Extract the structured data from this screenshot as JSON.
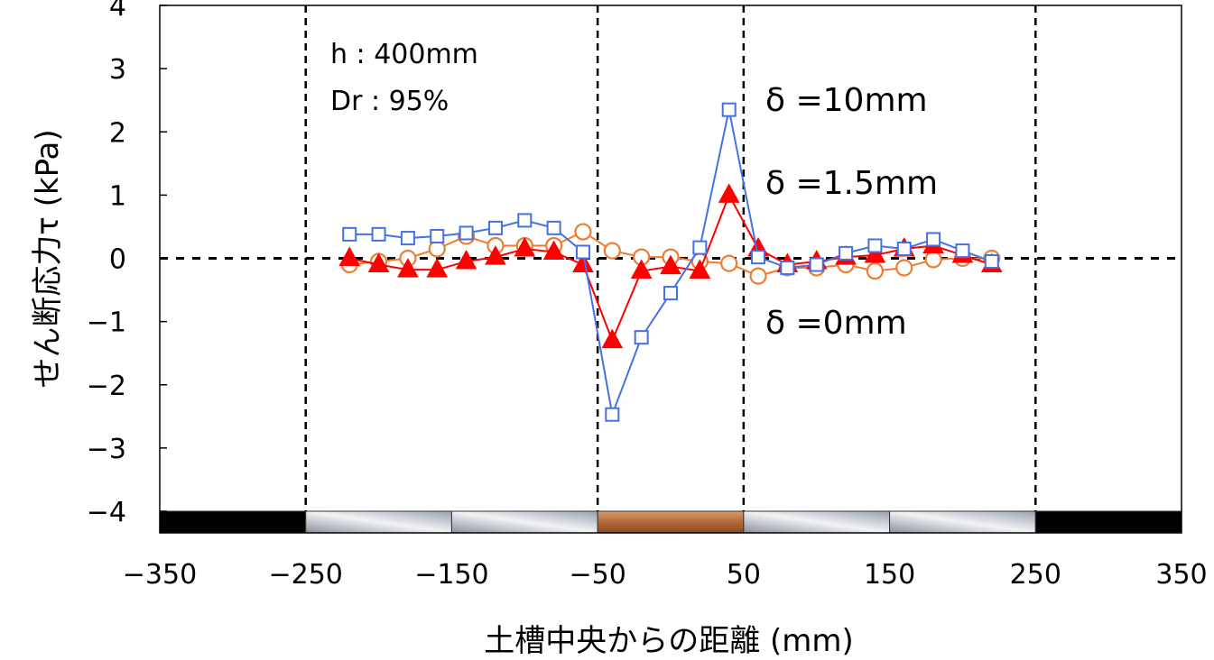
{
  "chart_data": {
    "type": "line",
    "xlabel": "土槽中央からの距離 (mm)",
    "ylabel": "せん断応力τ (kPa)",
    "xlim": [
      -350,
      350
    ],
    "ylim": [
      -4,
      4
    ],
    "x_ticks": [
      "−350",
      "−250",
      "−150",
      "−50",
      "50",
      "150",
      "250",
      "350"
    ],
    "x_tick_values": [
      -350,
      -250,
      -150,
      -50,
      50,
      150,
      250,
      350
    ],
    "y_ticks": [
      "4",
      "3",
      "2",
      "1",
      "0",
      "−1",
      "−2",
      "−3",
      "−4"
    ],
    "y_tick_values": [
      4,
      3,
      2,
      1,
      0,
      -1,
      -2,
      -3,
      -4
    ],
    "vertical_dashed_lines": [
      -250,
      -50,
      50,
      250
    ],
    "zero_line_dashed": true,
    "annotations": {
      "h": "h : 400mm",
      "dr": "Dr : 95%",
      "d10": "δ =10mm",
      "d15": "δ =1.5mm",
      "d0": "δ =0mm"
    },
    "bottom_strip": [
      {
        "from": -350,
        "to": -250,
        "color": "#000000"
      },
      {
        "from": -250,
        "to": -50,
        "color": "#9aa0ac"
      },
      {
        "from": -50,
        "to": 50,
        "color": "#b5693a"
      },
      {
        "from": 50,
        "to": 250,
        "color": "#9aa0ac"
      },
      {
        "from": 250,
        "to": 350,
        "color": "#000000"
      }
    ],
    "x": [
      -220,
      -200,
      -180,
      -160,
      -140,
      -120,
      -100,
      -80,
      -60,
      -40,
      -20,
      0,
      20,
      40,
      60,
      80,
      100,
      120,
      140,
      160,
      180,
      200,
      220
    ],
    "series": [
      {
        "label_key": "d0",
        "marker": "circle",
        "color": "#ed7d31",
        "values": [
          -0.1,
          -0.05,
          0.0,
          0.15,
          0.35,
          0.2,
          0.2,
          0.2,
          0.42,
          0.12,
          0.02,
          0.02,
          -0.05,
          -0.08,
          -0.28,
          -0.15,
          -0.15,
          -0.1,
          -0.2,
          -0.15,
          -0.02,
          0.0,
          0.0
        ]
      },
      {
        "label_key": "d15",
        "marker": "triangle",
        "color": "#ff0000",
        "values": [
          0.0,
          -0.1,
          -0.18,
          -0.18,
          -0.05,
          0.02,
          0.15,
          0.1,
          -0.1,
          -1.3,
          -0.2,
          -0.13,
          -0.2,
          1.0,
          0.15,
          -0.1,
          -0.05,
          0.02,
          0.05,
          0.15,
          0.2,
          0.05,
          -0.1
        ]
      },
      {
        "label_key": "d10",
        "marker": "square",
        "color": "#4472e4",
        "values": [
          0.38,
          0.38,
          0.32,
          0.35,
          0.4,
          0.48,
          0.6,
          0.48,
          0.1,
          -2.47,
          -1.25,
          -0.55,
          0.17,
          2.35,
          0.02,
          -0.15,
          -0.1,
          0.08,
          0.2,
          0.15,
          0.3,
          0.12,
          -0.05
        ]
      }
    ]
  }
}
